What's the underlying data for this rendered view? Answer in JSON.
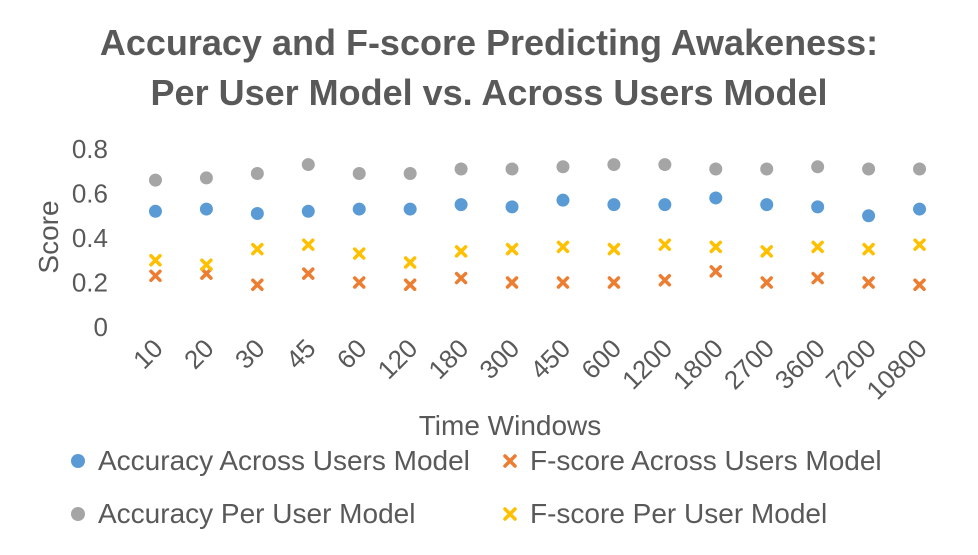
{
  "chart_data": {
    "type": "scatter",
    "title_lines": [
      "Accuracy and F-score Predicting Awakeness:",
      "Per User Model vs. Across Users Model"
    ],
    "xlabel": "Time Windows",
    "ylabel": "Score",
    "categories": [
      "10",
      "20",
      "30",
      "45",
      "60",
      "120",
      "180",
      "300",
      "450",
      "600",
      "1200",
      "1800",
      "2700",
      "3600",
      "7200",
      "10800"
    ],
    "yticks": [
      "0",
      "0.2",
      "0.4",
      "0.6",
      "0.8"
    ],
    "ylim": [
      0,
      0.8
    ],
    "grid": false,
    "legend_position": "bottom",
    "series": [
      {
        "name": "Accuracy Across Users Model",
        "marker": "circle",
        "color": "#5B9BD5",
        "values": [
          0.52,
          0.53,
          0.51,
          0.52,
          0.53,
          0.53,
          0.55,
          0.54,
          0.57,
          0.55,
          0.55,
          0.58,
          0.55,
          0.54,
          0.5,
          0.53
        ]
      },
      {
        "name": "F-score Across Users Model",
        "marker": "x",
        "color": "#ED7D31",
        "values": [
          0.23,
          0.24,
          0.19,
          0.24,
          0.2,
          0.19,
          0.22,
          0.2,
          0.2,
          0.2,
          0.21,
          0.25,
          0.2,
          0.22,
          0.2,
          0.19
        ]
      },
      {
        "name": "Accuracy Per User Model",
        "marker": "circle",
        "color": "#A5A5A5",
        "values": [
          0.66,
          0.67,
          0.69,
          0.73,
          0.69,
          0.69,
          0.71,
          0.71,
          0.72,
          0.73,
          0.73,
          0.71,
          0.71,
          0.72,
          0.71,
          0.71
        ]
      },
      {
        "name": "F-score Per User Model",
        "marker": "x",
        "color": "#FFC000",
        "values": [
          0.3,
          0.28,
          0.35,
          0.37,
          0.33,
          0.29,
          0.34,
          0.35,
          0.36,
          0.35,
          0.37,
          0.36,
          0.34,
          0.36,
          0.35,
          0.37
        ]
      }
    ]
  }
}
